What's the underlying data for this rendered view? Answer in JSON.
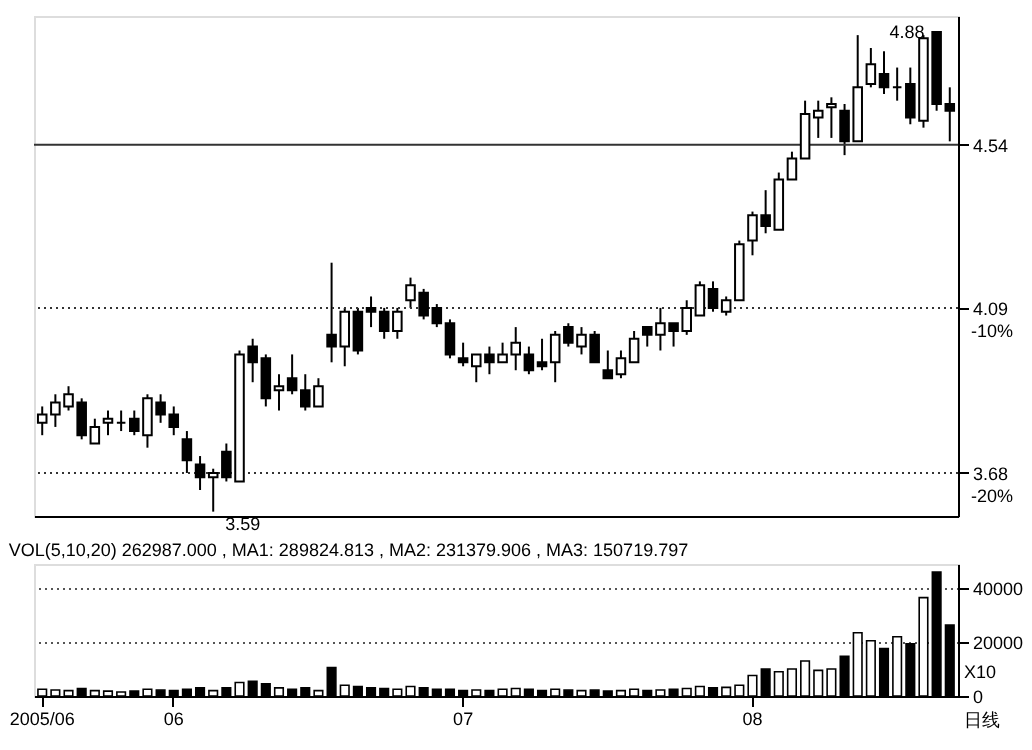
{
  "chart_data": [
    {
      "type": "candlestick",
      "categories": [
        "2005/06",
        null,
        null,
        null,
        null,
        null,
        null,
        null,
        null,
        null,
        "06",
        null,
        null,
        null,
        null,
        null,
        null,
        null,
        null,
        null,
        null,
        null,
        null,
        null,
        null,
        null,
        null,
        null,
        null,
        null,
        null,
        null,
        "07",
        null,
        null,
        null,
        null,
        null,
        null,
        null,
        null,
        null,
        null,
        null,
        null,
        null,
        null,
        null,
        null,
        null,
        null,
        null,
        null,
        null,
        "08",
        null,
        null,
        null,
        null,
        null,
        null,
        null,
        null,
        null,
        null,
        null,
        null,
        null,
        null,
        null
      ],
      "ohlc": [
        [
          3.8,
          3.84,
          3.77,
          3.82
        ],
        [
          3.82,
          3.87,
          3.79,
          3.85
        ],
        [
          3.84,
          3.89,
          3.83,
          3.87
        ],
        [
          3.85,
          3.86,
          3.76,
          3.77
        ],
        [
          3.75,
          3.81,
          3.75,
          3.79
        ],
        [
          3.8,
          3.83,
          3.77,
          3.81
        ],
        [
          3.8,
          3.83,
          3.78,
          3.8
        ],
        [
          3.81,
          3.83,
          3.77,
          3.78
        ],
        [
          3.77,
          3.87,
          3.74,
          3.86
        ],
        [
          3.85,
          3.87,
          3.8,
          3.82
        ],
        [
          3.82,
          3.84,
          3.77,
          3.79
        ],
        [
          3.76,
          3.78,
          3.68,
          3.71
        ],
        [
          3.7,
          3.72,
          3.64,
          3.67
        ],
        [
          3.67,
          3.69,
          3.59,
          3.68
        ],
        [
          3.73,
          3.75,
          3.66,
          3.67
        ],
        [
          3.66,
          3.98,
          3.66,
          3.97
        ],
        [
          3.99,
          4.01,
          3.9,
          3.95
        ],
        [
          3.96,
          3.97,
          3.84,
          3.86
        ],
        [
          3.88,
          3.92,
          3.83,
          3.89
        ],
        [
          3.91,
          3.97,
          3.87,
          3.88
        ],
        [
          3.88,
          3.92,
          3.83,
          3.84
        ],
        [
          3.84,
          3.91,
          3.84,
          3.89
        ],
        [
          4.02,
          4.21,
          3.95,
          3.99
        ],
        [
          3.99,
          4.09,
          3.94,
          4.08
        ],
        [
          4.08,
          4.09,
          3.97,
          3.98
        ],
        [
          4.09,
          4.12,
          4.04,
          4.08
        ],
        [
          4.08,
          4.09,
          4.01,
          4.03
        ],
        [
          4.03,
          4.09,
          4.01,
          4.08
        ],
        [
          4.11,
          4.17,
          4.09,
          4.15
        ],
        [
          4.13,
          4.14,
          4.06,
          4.07
        ],
        [
          4.09,
          4.1,
          4.04,
          4.05
        ],
        [
          4.05,
          4.06,
          3.96,
          3.97
        ],
        [
          3.96,
          4.0,
          3.94,
          3.95
        ],
        [
          3.94,
          3.97,
          3.9,
          3.97
        ],
        [
          3.97,
          3.99,
          3.92,
          3.95
        ],
        [
          3.95,
          4.0,
          3.95,
          3.97
        ],
        [
          3.97,
          4.04,
          3.93,
          4.0
        ],
        [
          3.97,
          3.99,
          3.92,
          3.93
        ],
        [
          3.95,
          4.01,
          3.93,
          3.94
        ],
        [
          3.95,
          4.03,
          3.9,
          4.02
        ],
        [
          4.04,
          4.05,
          3.99,
          4.0
        ],
        [
          3.99,
          4.04,
          3.97,
          4.02
        ],
        [
          4.02,
          4.03,
          3.95,
          3.95
        ],
        [
          3.93,
          3.98,
          3.91,
          3.91
        ],
        [
          3.92,
          3.98,
          3.91,
          3.96
        ],
        [
          3.95,
          4.03,
          3.95,
          4.01
        ],
        [
          4.04,
          4.04,
          3.99,
          4.02
        ],
        [
          4.02,
          4.09,
          3.98,
          4.05
        ],
        [
          4.05,
          4.05,
          3.99,
          4.03
        ],
        [
          4.03,
          4.11,
          4.02,
          4.09
        ],
        [
          4.07,
          4.16,
          4.07,
          4.15
        ],
        [
          4.14,
          4.16,
          4.08,
          4.09
        ],
        [
          4.08,
          4.12,
          4.07,
          4.11
        ],
        [
          4.11,
          4.27,
          4.11,
          4.26
        ],
        [
          4.27,
          4.35,
          4.23,
          4.34
        ],
        [
          4.34,
          4.41,
          4.29,
          4.31
        ],
        [
          4.3,
          4.46,
          4.3,
          4.44
        ],
        [
          4.44,
          4.52,
          4.44,
          4.5
        ],
        [
          4.5,
          4.67,
          4.5,
          4.63
        ],
        [
          4.62,
          4.67,
          4.56,
          4.64
        ],
        [
          4.65,
          4.68,
          4.56,
          4.66
        ],
        [
          4.64,
          4.66,
          4.51,
          4.55
        ],
        [
          4.55,
          4.87,
          4.55,
          4.71
        ],
        [
          4.72,
          4.83,
          4.71,
          4.78
        ],
        [
          4.75,
          4.82,
          4.69,
          4.71
        ],
        [
          4.71,
          4.77,
          4.67,
          4.71
        ],
        [
          4.72,
          4.77,
          4.6,
          4.62
        ],
        [
          4.61,
          4.87,
          4.59,
          4.86
        ],
        [
          4.88,
          4.88,
          4.64,
          4.66
        ],
        [
          4.66,
          4.71,
          4.55,
          4.64
        ]
      ],
      "log": "y",
      "ylim": [
        3.58,
        4.93
      ],
      "yticks": [
        4.54,
        4.09,
        3.68
      ],
      "ref_lines": [
        {
          "axis": "y",
          "value": 4.54,
          "line_style": "solid"
        },
        {
          "axis": "y",
          "value": 4.09,
          "line_style": "dotted"
        },
        {
          "axis": "y",
          "value": 3.68,
          "line_style": "dotted"
        }
      ],
      "y2lim": [
        -21.27,
        9.03
      ],
      "y2ticks": [
        {
          "value": -10,
          "label": "-10%"
        },
        {
          "value": -20,
          "label": "-20%"
        }
      ],
      "annotations": [
        "3.59",
        "4.88"
      ],
      "tick_labels": "y"
    },
    {
      "type": "bar",
      "title": "VOL(5,10,20)  262987.000 , MA1: 289824.813 , MA2: 231379.906 , MA3: 150719.797",
      "categories": [
        "2005/06",
        null,
        null,
        null,
        null,
        null,
        null,
        null,
        null,
        null,
        "06",
        null,
        null,
        null,
        null,
        null,
        null,
        null,
        null,
        null,
        null,
        null,
        null,
        null,
        null,
        null,
        null,
        null,
        null,
        null,
        null,
        null,
        "07",
        null,
        null,
        null,
        null,
        null,
        null,
        null,
        null,
        null,
        null,
        null,
        null,
        null,
        null,
        null,
        null,
        null,
        null,
        null,
        null,
        null,
        "08",
        null,
        null,
        null,
        null,
        null,
        null,
        null,
        null,
        null,
        null,
        null,
        null,
        null,
        null,
        null
      ],
      "values": [
        2500,
        2200,
        2000,
        2800,
        2000,
        1800,
        1500,
        1800,
        2500,
        2200,
        2000,
        2500,
        3000,
        2000,
        3000,
        5000,
        5500,
        4500,
        3000,
        2500,
        3000,
        2000,
        10600,
        4000,
        3500,
        3000,
        2800,
        2500,
        3500,
        3000,
        2500,
        2500,
        2000,
        2200,
        2000,
        2500,
        2800,
        2500,
        2000,
        2500,
        2200,
        2000,
        2200,
        1800,
        2000,
        2500,
        2000,
        2200,
        2500,
        2800,
        3500,
        3000,
        3200,
        4000,
        7600,
        10000,
        9000,
        10000,
        13000,
        9500,
        10000,
        14700,
        23500,
        20500,
        17600,
        22000,
        19400,
        36500,
        46000,
        26300
      ],
      "colors": [
        "#ffffff",
        "#ffffff",
        "#ffffff",
        "#000000",
        "#ffffff",
        "#ffffff",
        "#ffffff",
        "#000000",
        "#ffffff",
        "#000000",
        "#000000",
        "#000000",
        "#000000",
        "#ffffff",
        "#000000",
        "#ffffff",
        "#000000",
        "#000000",
        "#ffffff",
        "#000000",
        "#000000",
        "#ffffff",
        "#000000",
        "#ffffff",
        "#000000",
        "#000000",
        "#000000",
        "#ffffff",
        "#ffffff",
        "#000000",
        "#000000",
        "#000000",
        "#000000",
        "#ffffff",
        "#000000",
        "#ffffff",
        "#ffffff",
        "#000000",
        "#000000",
        "#ffffff",
        "#000000",
        "#ffffff",
        "#000000",
        "#000000",
        "#ffffff",
        "#ffffff",
        "#000000",
        "#ffffff",
        "#000000",
        "#ffffff",
        "#ffffff",
        "#000000",
        "#ffffff",
        "#ffffff",
        "#ffffff",
        "#000000",
        "#ffffff",
        "#ffffff",
        "#ffffff",
        "#ffffff",
        "#ffffff",
        "#000000",
        "#ffffff",
        "#ffffff",
        "#000000",
        "#ffffff",
        "#000000",
        "#ffffff",
        "#000000",
        "#000000"
      ],
      "ylim": [
        0,
        49000
      ],
      "yticks": [
        0,
        20000,
        40000
      ],
      "grid": "y",
      "annotations": [
        "X10",
        "日线"
      ]
    }
  ]
}
